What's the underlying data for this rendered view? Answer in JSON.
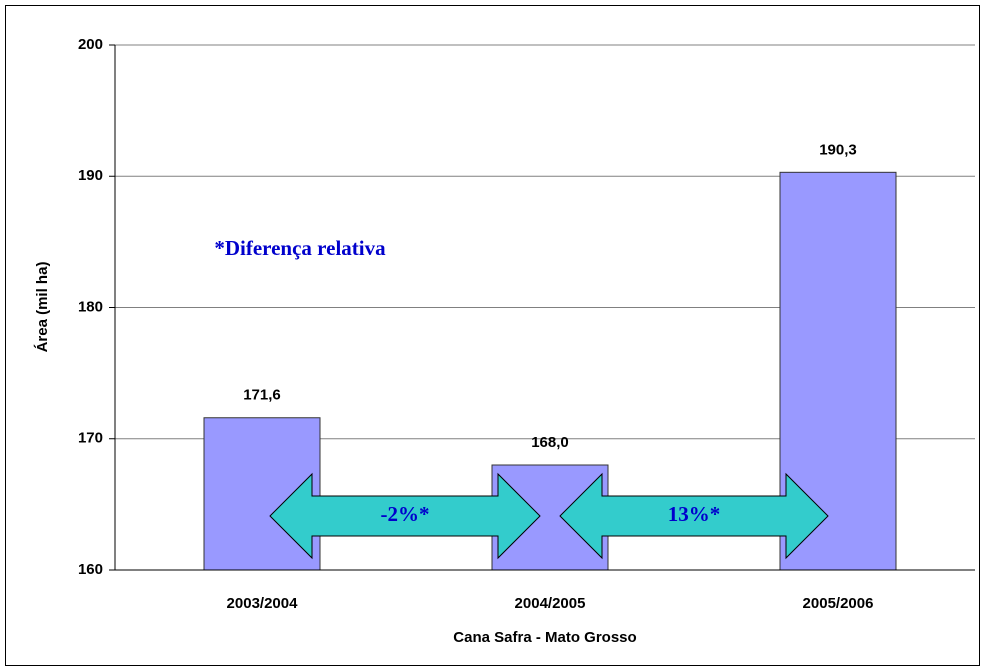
{
  "chart_data": {
    "type": "bar",
    "categories": [
      "2003/2004",
      "2004/2005",
      "2005/2006"
    ],
    "values": [
      171.6,
      168.0,
      190.3
    ],
    "value_labels": [
      "171,6",
      "168,0",
      "190,3"
    ],
    "color": "#9999ff",
    "ylim": [
      160,
      200
    ],
    "yticks": [
      160,
      170,
      180,
      190,
      200
    ],
    "grid": true,
    "ylabel": "Área (mil ha)",
    "xlabel": "Cana Safra - Mato Grosso",
    "annotations": [
      "*Diferença relativa",
      "-2%*",
      "13%*"
    ],
    "arrow_color": "#33cccc"
  }
}
